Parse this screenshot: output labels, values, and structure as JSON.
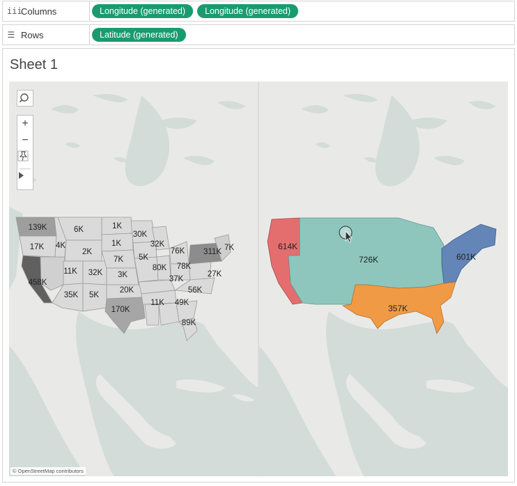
{
  "shelves": {
    "columns": {
      "label": "Columns",
      "icon": "iii",
      "pills": [
        "Longitude (generated)",
        "Longitude (generated)"
      ]
    },
    "rows": {
      "label": "Rows",
      "icon": "☰",
      "pills": [
        "Latitude (generated)"
      ]
    }
  },
  "sheet": {
    "title": "Sheet 1"
  },
  "map_toolbar": {
    "search_icon": "search-icon",
    "zoom_in": "+",
    "zoom_out": "−",
    "pin_icon": "pin-icon",
    "expand_icon": "triangle-right-icon"
  },
  "attribution": "© OpenStreetMap contributors",
  "colors": {
    "pill": "#1a9b6f",
    "water": "#d3dcd9",
    "land": "#e9eae8",
    "west": "#e46e6e",
    "central": "#8ec6bd",
    "east": "#6385b7",
    "south": "#f09a46"
  },
  "left_map_labels": {
    "wa": "139K",
    "mt": "6K",
    "nd": "1K",
    "or": "17K",
    "id": "4K",
    "sd": "1K",
    "wy": "2K",
    "mn": "30K",
    "wi": "32K",
    "ne": "7K",
    "nv": "11K",
    "ut": "32K",
    "co": "3K",
    "ks": "5K",
    "ca": "458K",
    "az": "35K",
    "nm": "5K",
    "ok": "20K",
    "tx": "170K",
    "ia": "5K",
    "il": "80K",
    "mi": "76K",
    "in": "78K",
    "oh": "37K",
    "ny": "311K",
    "ne_states": "7K",
    "va": "27K",
    "tn": "56K",
    "al": "11K",
    "ga": "49K",
    "fl": "89K"
  },
  "right_map_labels": {
    "west": "614K",
    "central": "726K",
    "east": "601K",
    "south": "357K"
  }
}
